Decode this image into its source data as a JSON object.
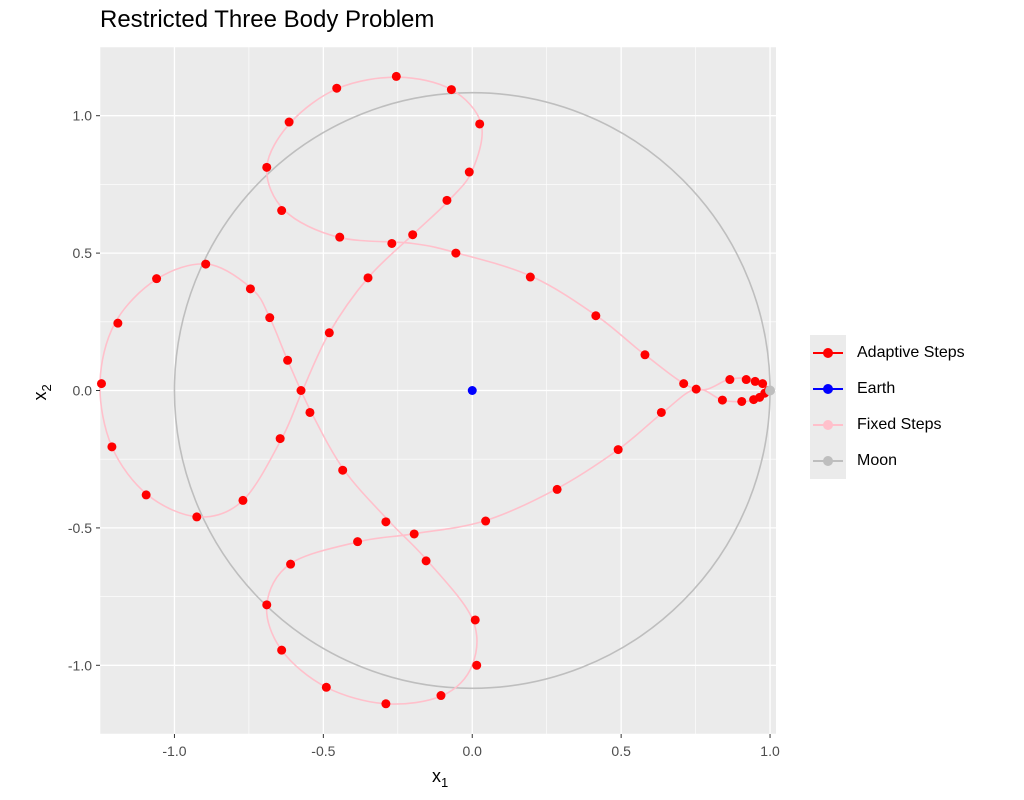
{
  "chart_data": {
    "type": "scatter",
    "title": "Restricted Three Body Problem",
    "xlabel": {
      "main": "x",
      "sub": "1"
    },
    "ylabel": {
      "main": "x",
      "sub": "2"
    },
    "xlim": [
      -1.25,
      1.02
    ],
    "ylim": [
      -1.25,
      1.25
    ],
    "x_ticks": [
      -1.0,
      -0.5,
      0.0,
      0.5,
      1.0
    ],
    "y_ticks": [
      -1.0,
      -0.5,
      0.0,
      0.5,
      1.0
    ],
    "x_tick_labels": [
      "-1.0",
      "-0.5",
      "0.0",
      "0.5",
      "1.0"
    ],
    "y_tick_labels": [
      "-1.0",
      "-0.5",
      "0.0",
      "0.5",
      "1.0"
    ],
    "grid": true,
    "legend_position": "right",
    "colors": {
      "adaptive": "#ff0000",
      "earth": "#0000ff",
      "fixed": "#ffc0cb",
      "moon": "#bebebe",
      "panel": "#ebebeb",
      "grid": "#ffffff"
    },
    "legend": [
      {
        "name": "Adaptive Steps",
        "color": "#ff0000"
      },
      {
        "name": "Earth",
        "color": "#0000ff"
      },
      {
        "name": "Fixed Steps",
        "color": "#ffc0cb"
      },
      {
        "name": "Moon",
        "color": "#bebebe"
      }
    ],
    "earth": {
      "x": 0.0,
      "y": 0.0
    },
    "moon": {
      "x": 1.0,
      "y": 0.0
    },
    "moon_orbit_radius": 1.0,
    "fixed_steps_path": [
      [
        0.994,
        0.0
      ],
      [
        0.97,
        0.03
      ],
      [
        0.92,
        0.045
      ],
      [
        0.86,
        0.04
      ],
      [
        0.75,
        0.005
      ],
      [
        0.58,
        0.13
      ],
      [
        0.42,
        0.27
      ],
      [
        0.2,
        0.415
      ],
      [
        -0.05,
        0.5
      ],
      [
        -0.2,
        0.535
      ],
      [
        -0.45,
        0.558
      ],
      [
        -0.63,
        0.655
      ],
      [
        -0.69,
        0.812
      ],
      [
        -0.61,
        0.975
      ],
      [
        -0.45,
        1.1
      ],
      [
        -0.25,
        1.14
      ],
      [
        -0.07,
        1.095
      ],
      [
        0.03,
        0.97
      ],
      [
        0.0,
        0.8
      ],
      [
        -0.08,
        0.69
      ],
      [
        -0.2,
        0.567
      ],
      [
        -0.35,
        0.41
      ],
      [
        -0.48,
        0.21
      ],
      [
        -0.57,
        0.0
      ],
      [
        -0.64,
        -0.175
      ],
      [
        -0.77,
        -0.4
      ],
      [
        -0.92,
        -0.46
      ],
      [
        -1.09,
        -0.38
      ],
      [
        -1.21,
        -0.205
      ],
      [
        -1.25,
        0.025
      ],
      [
        -1.2,
        0.245
      ],
      [
        -1.06,
        0.405
      ],
      [
        -0.89,
        0.46
      ],
      [
        -0.74,
        0.37
      ],
      [
        -0.68,
        0.265
      ],
      [
        -0.62,
        0.11
      ],
      [
        -0.54,
        -0.08
      ],
      [
        -0.43,
        -0.29
      ],
      [
        -0.28,
        -0.475
      ],
      [
        -0.15,
        -0.62
      ],
      [
        0.0,
        -0.83
      ],
      [
        0.0,
        -1.0
      ],
      [
        -0.1,
        -1.11
      ],
      [
        -0.29,
        -1.14
      ],
      [
        -0.49,
        -1.08
      ],
      [
        -0.64,
        -0.945
      ],
      [
        -0.69,
        -0.78
      ],
      [
        -0.61,
        -0.63
      ],
      [
        -0.38,
        -0.55
      ],
      [
        -0.2,
        -0.522
      ],
      [
        0.04,
        -0.475
      ],
      [
        0.28,
        -0.36
      ],
      [
        0.49,
        -0.215
      ],
      [
        0.64,
        -0.08
      ],
      [
        0.75,
        0.005
      ],
      [
        0.84,
        -0.035
      ],
      [
        0.91,
        -0.04
      ],
      [
        0.955,
        -0.03
      ],
      [
        0.98,
        -0.015
      ],
      [
        0.994,
        0.0
      ]
    ],
    "adaptive_points": [
      [
        0.994,
        0.0
      ],
      [
        0.975,
        0.025
      ],
      [
        0.95,
        0.033
      ],
      [
        0.92,
        0.04
      ],
      [
        0.865,
        0.04
      ],
      [
        0.71,
        0.025
      ],
      [
        0.752,
        0.005
      ],
      [
        0.58,
        0.13
      ],
      [
        0.415,
        0.272
      ],
      [
        0.195,
        0.413
      ],
      [
        -0.055,
        0.5
      ],
      [
        -0.2,
        0.567
      ],
      [
        -0.27,
        0.535
      ],
      [
        -0.445,
        0.558
      ],
      [
        -0.64,
        0.655
      ],
      [
        -0.69,
        0.812
      ],
      [
        -0.615,
        0.977
      ],
      [
        -0.455,
        1.1
      ],
      [
        -0.255,
        1.143
      ],
      [
        -0.07,
        1.095
      ],
      [
        0.025,
        0.97
      ],
      [
        -0.01,
        0.795
      ],
      [
        -0.085,
        0.692
      ],
      [
        -0.35,
        0.41
      ],
      [
        -0.48,
        0.21
      ],
      [
        -0.575,
        0.0
      ],
      [
        -0.62,
        0.11
      ],
      [
        -0.68,
        0.265
      ],
      [
        -0.745,
        0.37
      ],
      [
        -0.895,
        0.46
      ],
      [
        -1.06,
        0.407
      ],
      [
        -1.19,
        0.245
      ],
      [
        -1.245,
        0.025
      ],
      [
        -1.21,
        -0.205
      ],
      [
        -1.095,
        -0.38
      ],
      [
        -0.925,
        -0.46
      ],
      [
        -0.77,
        -0.4
      ],
      [
        -0.645,
        -0.175
      ],
      [
        -0.545,
        -0.08
      ],
      [
        -0.435,
        -0.29
      ],
      [
        -0.29,
        -0.478
      ],
      [
        -0.195,
        -0.522
      ],
      [
        -0.155,
        -0.62
      ],
      [
        0.01,
        -0.835
      ],
      [
        0.015,
        -1.0
      ],
      [
        -0.105,
        -1.11
      ],
      [
        -0.29,
        -1.14
      ],
      [
        -0.49,
        -1.08
      ],
      [
        -0.64,
        -0.945
      ],
      [
        -0.69,
        -0.78
      ],
      [
        -0.61,
        -0.632
      ],
      [
        -0.385,
        -0.55
      ],
      [
        0.045,
        -0.475
      ],
      [
        0.285,
        -0.36
      ],
      [
        0.49,
        -0.215
      ],
      [
        0.635,
        -0.08
      ],
      [
        0.84,
        -0.035
      ],
      [
        0.905,
        -0.04
      ],
      [
        0.945,
        -0.033
      ],
      [
        0.965,
        -0.025
      ],
      [
        0.982,
        -0.01
      ]
    ]
  }
}
